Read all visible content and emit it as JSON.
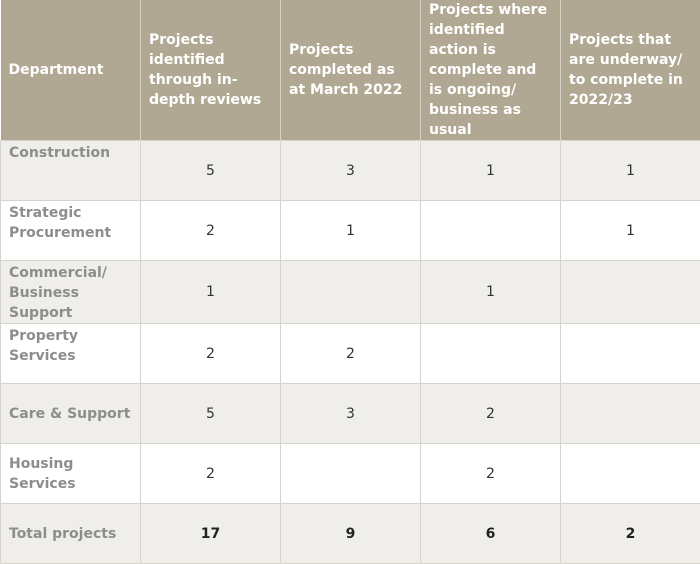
{
  "headers": [
    "Department",
    "Projects identified through in-depth reviews",
    "Projects completed as at March 2022",
    "Projects where identified action is complete and is ongoing/ business as usual",
    "Projects that are underway/ to complete in 2022/23"
  ],
  "rows": [
    {
      "dept": "Construction",
      "values": [
        "5",
        "3",
        "1",
        "1"
      ]
    },
    {
      "dept": "Strategic Procurement",
      "values": [
        "2",
        "1",
        "",
        "1"
      ]
    },
    {
      "dept": "Commercial/ Business Support",
      "values": [
        "1",
        "",
        "1",
        ""
      ]
    },
    {
      "dept": "Property Services",
      "values": [
        "2",
        "2",
        "",
        ""
      ]
    },
    {
      "dept": "Care & Support",
      "values": [
        "5",
        "3",
        "2",
        ""
      ]
    },
    {
      "dept": "Housing Services",
      "values": [
        "2",
        "",
        "2",
        ""
      ]
    },
    {
      "dept": "Total projects",
      "values": [
        "17",
        "9",
        "6",
        "2"
      ]
    }
  ],
  "colors": {
    "header_bg": "#b0a893",
    "header_text": "#ffffff",
    "row_alt_bg": "#efeeea",
    "dept_text": "#8d8d8d"
  }
}
